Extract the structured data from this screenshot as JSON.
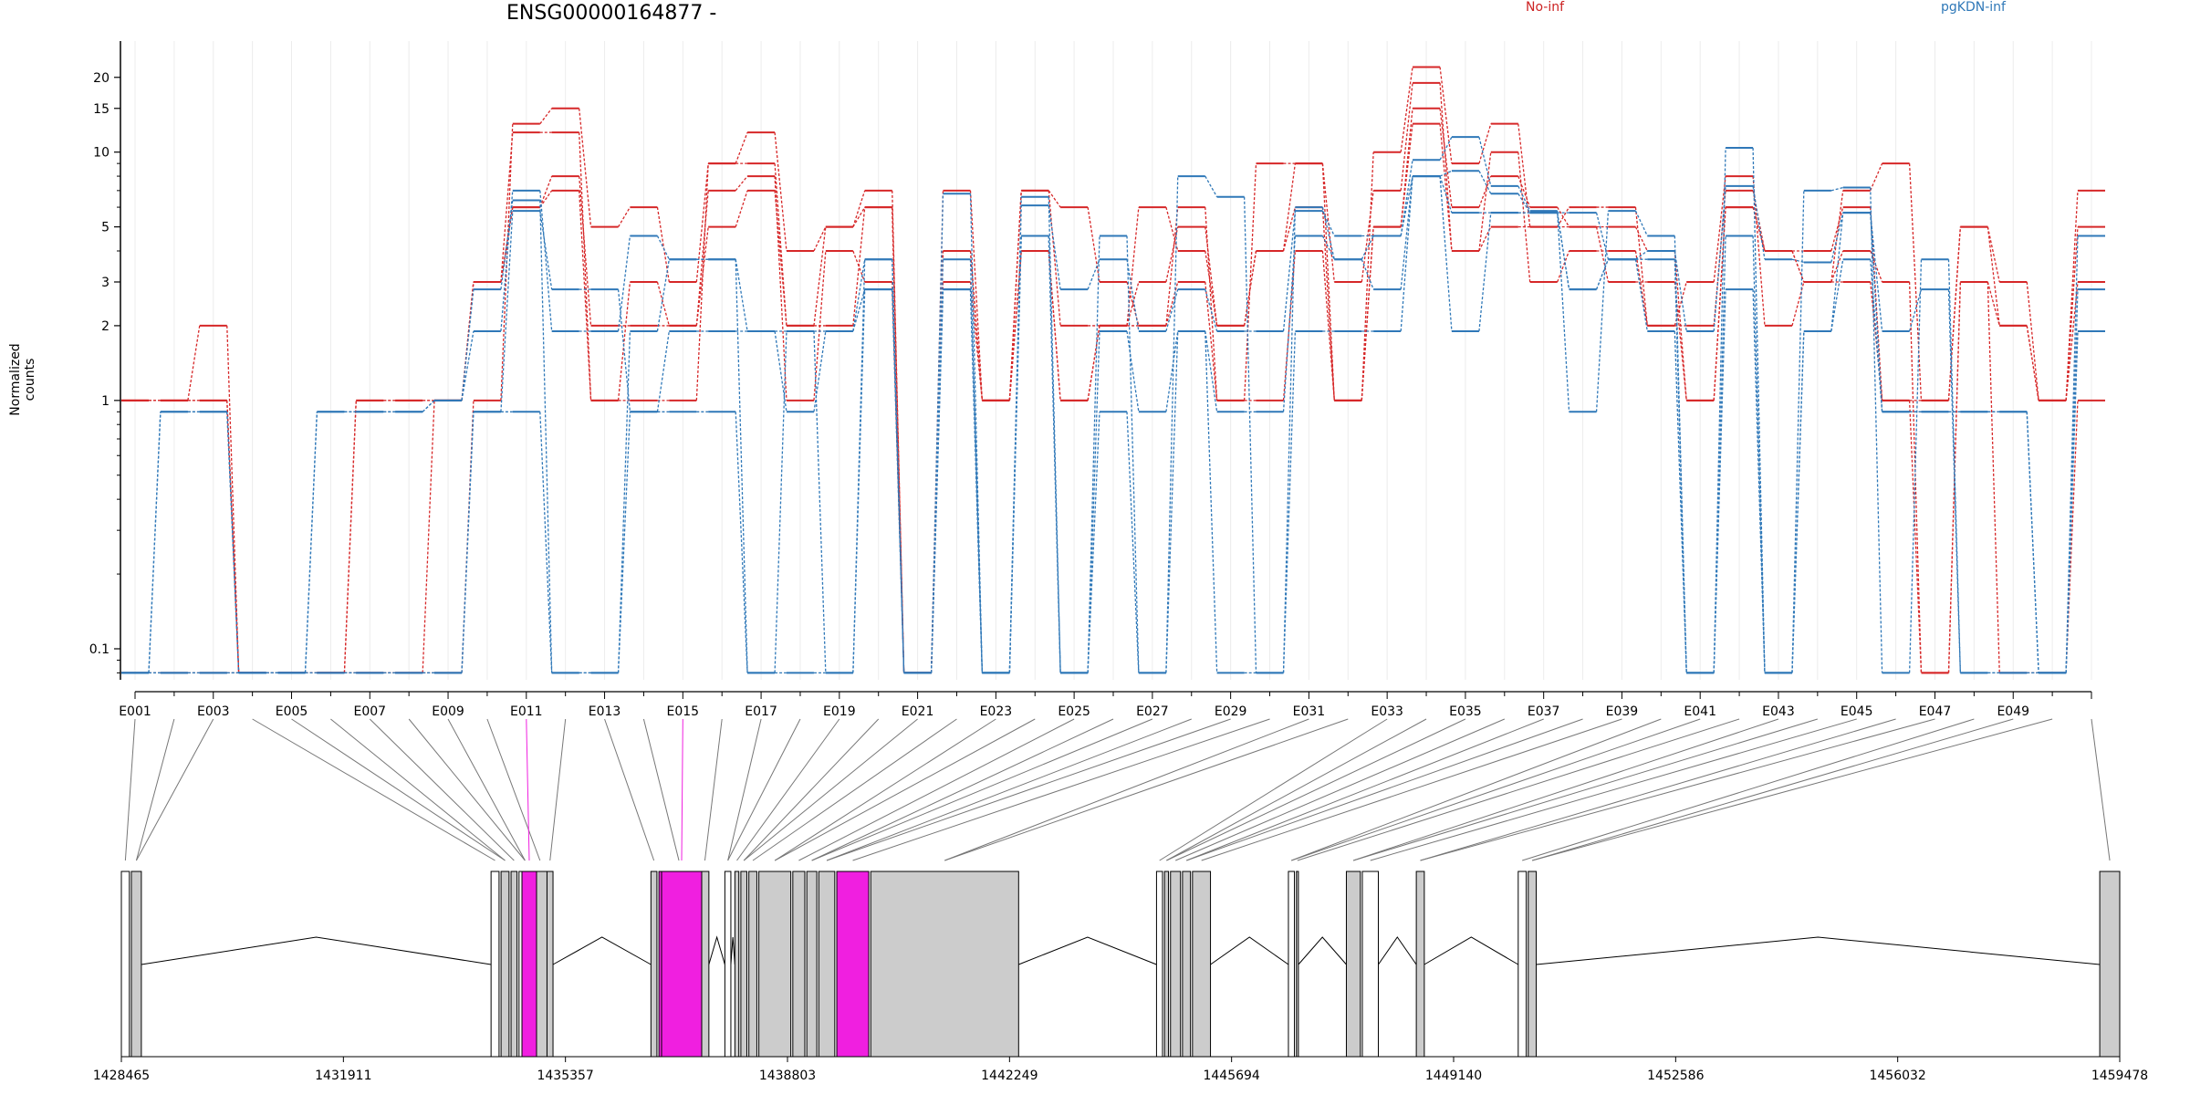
{
  "chart_data": {
    "type": "line",
    "title": "ENSG00000164877 -",
    "ylabel": "Normalized counts",
    "yscale": "log",
    "ylim": [
      0.075,
      28
    ],
    "yticks": [
      0.1,
      1,
      2,
      3,
      5,
      10,
      15,
      20
    ],
    "exon_labels": [
      "E001",
      "E003",
      "E005",
      "E007",
      "E009",
      "E011",
      "E013",
      "E015",
      "E017",
      "E019",
      "E021",
      "E023",
      "E025",
      "E027",
      "E029",
      "E031",
      "E033",
      "E035",
      "E037",
      "E039",
      "E041",
      "E043",
      "E045",
      "E047",
      "E049"
    ],
    "series": [
      {
        "name": "No-inf",
        "color": "#d62728",
        "values": [
          1,
          1,
          2,
          0.08,
          0.08,
          0.08,
          0.08,
          0.08,
          0.08,
          1,
          13,
          15,
          5,
          6,
          3,
          9,
          12,
          4,
          5,
          7,
          0.08,
          7,
          1,
          7,
          6,
          3,
          2,
          6,
          1,
          9,
          9,
          1,
          10,
          22,
          9,
          13,
          5,
          6,
          6,
          2,
          3,
          8,
          2,
          3,
          7,
          9,
          1,
          5,
          2,
          1,
          7
        ]
      },
      {
        "name": "No-inf",
        "color": "#d62728",
        "values": [
          1,
          1,
          1,
          0.08,
          0.08,
          0.08,
          1,
          1,
          1,
          3,
          12,
          12,
          1,
          1,
          1,
          9,
          9,
          2,
          2,
          6,
          0.08,
          4,
          1,
          7,
          2,
          2,
          3,
          5,
          2,
          4,
          9,
          3,
          7,
          19,
          4,
          10,
          3,
          4,
          4,
          2,
          2,
          7,
          4,
          4,
          6,
          1,
          1,
          5,
          3,
          1,
          5
        ]
      },
      {
        "name": "No-inf",
        "color": "#d62728",
        "values": [
          1,
          1,
          1,
          0.08,
          0.08,
          0.08,
          1,
          1,
          1,
          3,
          6,
          8,
          2,
          2,
          2,
          7,
          8,
          1,
          4,
          3,
          0.08,
          4,
          1,
          4,
          1,
          2,
          6,
          4,
          2,
          4,
          6,
          1,
          5,
          15,
          6,
          8,
          6,
          5,
          5,
          4,
          1,
          6,
          4,
          3,
          4,
          3,
          0.08,
          3,
          2,
          1,
          3
        ]
      },
      {
        "name": "No-inf",
        "color": "#d62728",
        "values": [
          0.08,
          0.08,
          0.08,
          0.08,
          0.08,
          0.08,
          0.08,
          0.08,
          1,
          3,
          6,
          7,
          1,
          3,
          2,
          5,
          7,
          2,
          5,
          6,
          0.08,
          3,
          1,
          4,
          1,
          2,
          2,
          3,
          1,
          1,
          4,
          1,
          5,
          13,
          4,
          5,
          5,
          5,
          3,
          3,
          1,
          6,
          4,
          3,
          3,
          1,
          0.08,
          3,
          0.08,
          0.08,
          1
        ]
      },
      {
        "name": "pgKDN-inf",
        "color": "#2f78b8",
        "values": [
          0.08,
          0.9,
          0.9,
          0.08,
          0.08,
          0.9,
          0.9,
          0.9,
          1,
          1.9,
          7,
          1.9,
          1.9,
          4.6,
          3.7,
          3.7,
          1.9,
          1.9,
          1.9,
          3.7,
          0.08,
          6.8,
          0.08,
          6.6,
          0.08,
          4.6,
          0.08,
          8,
          6.6,
          0.08,
          6,
          3.7,
          4.6,
          9.3,
          11.5,
          7.3,
          5.8,
          0.9,
          5.8,
          4.6,
          0.08,
          10.4,
          0.08,
          7,
          7.2,
          0.08,
          3.7,
          0.08,
          0.08,
          0.08,
          4.6
        ]
      },
      {
        "name": "pgKDN-inf",
        "color": "#2f78b8",
        "values": [
          0.08,
          0.9,
          0.9,
          0.08,
          0.08,
          0.9,
          0.9,
          0.9,
          1,
          2.8,
          6.4,
          0.08,
          0.08,
          1.9,
          3.7,
          3.7,
          0.08,
          1.9,
          0.08,
          3.7,
          0.08,
          3.7,
          0.08,
          6.1,
          2.8,
          3.7,
          1.9,
          2.8,
          1.9,
          1.9,
          5.8,
          4.6,
          4.6,
          8,
          8.4,
          6.8,
          5.7,
          5.7,
          3.7,
          4,
          1.9,
          7.3,
          3.7,
          3.6,
          5.7,
          1.9,
          2.8,
          0.08,
          0.08,
          0.08,
          2.8
        ]
      },
      {
        "name": "pgKDN-inf",
        "color": "#2f78b8",
        "values": [
          0.08,
          0.08,
          0.08,
          0.08,
          0.08,
          0.08,
          0.08,
          0.08,
          0.08,
          0.9,
          5.8,
          2.8,
          2.8,
          0.9,
          1.9,
          1.9,
          1.9,
          0.9,
          1.9,
          2.8,
          0.08,
          2.8,
          0.08,
          4.6,
          0.08,
          1.9,
          0.9,
          1.9,
          0.9,
          0.9,
          4.6,
          3.7,
          2.8,
          8,
          5.7,
          5.7,
          5.7,
          2.8,
          3.7,
          3.7,
          0.08,
          4.6,
          0.08,
          1.9,
          5.7,
          0.9,
          0.9,
          0.9,
          0.9,
          0.08,
          1.9
        ]
      },
      {
        "name": "pgKDN-inf",
        "color": "#2f78b8",
        "values": [
          0.08,
          0.08,
          0.08,
          0.08,
          0.08,
          0.08,
          0.08,
          0.08,
          0.08,
          0.9,
          0.9,
          0.08,
          0.08,
          0.9,
          0.9,
          0.9,
          0.08,
          0.08,
          0.08,
          2.8,
          0.08,
          2.8,
          0.08,
          4.6,
          0.08,
          0.9,
          0.08,
          1.9,
          0.08,
          0.08,
          1.9,
          1.9,
          1.9,
          8,
          1.9,
          5.7,
          5.7,
          2.8,
          3.7,
          1.9,
          0.08,
          2.8,
          0.08,
          1.9,
          3.7,
          0.9,
          0.9,
          0.9,
          0.9,
          0.08,
          1.9
        ]
      }
    ],
    "highlight_exons": [
      11,
      15
    ],
    "highlight_color": "#f01fe0",
    "gene_model": {
      "x_ticks": [
        "1428465",
        "1431911",
        "1435357",
        "1438803",
        "1442249",
        "1445694",
        "1449140",
        "1452586",
        "1456032",
        "1459478"
      ],
      "xlim": [
        1428465,
        1459478
      ]
    },
    "grid": true,
    "legend": "top"
  }
}
